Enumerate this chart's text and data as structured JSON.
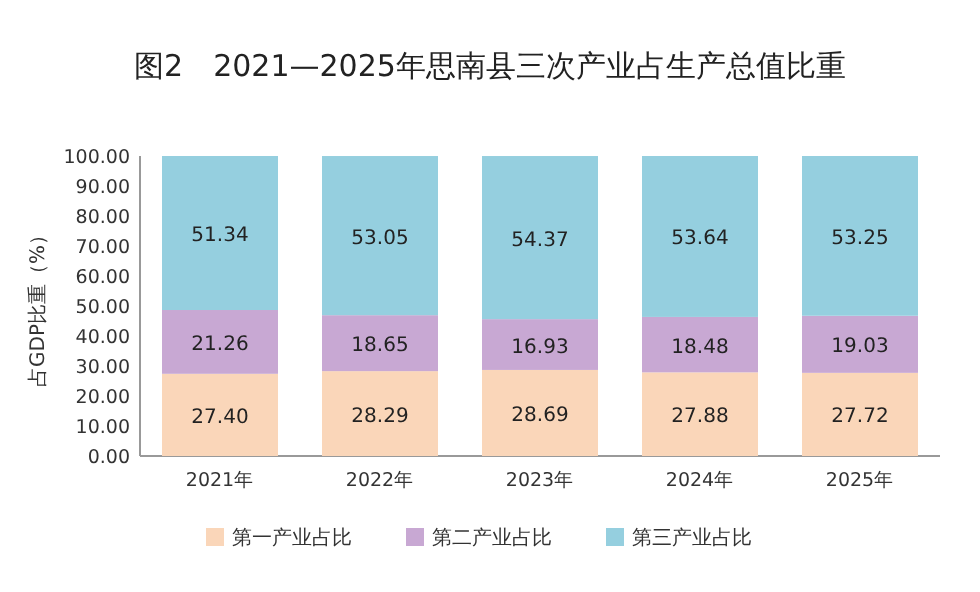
{
  "chart_data": {
    "type": "bar",
    "stacked": true,
    "title": "图2　2021—2025年思南县三次产业占生产总值比重",
    "ylabel": "占GDP比重（%）",
    "categories": [
      "2021年",
      "2022年",
      "2023年",
      "2024年",
      "2025年"
    ],
    "series": [
      {
        "name": "第一产业占比",
        "color": "#fad6b9",
        "values": [
          27.4,
          28.29,
          28.69,
          27.88,
          27.72
        ],
        "value_labels": [
          "27.40",
          "28.29",
          "28.69",
          "27.88",
          "27.72"
        ]
      },
      {
        "name": "第二产业占比",
        "color": "#c8a8d3",
        "values": [
          21.26,
          18.65,
          16.93,
          18.48,
          19.03
        ],
        "value_labels": [
          "21.26",
          "18.65",
          "16.93",
          "18.48",
          "19.03"
        ]
      },
      {
        "name": "第三产业占比",
        "color": "#95cfdf",
        "values": [
          51.34,
          53.05,
          54.37,
          53.64,
          53.25
        ],
        "value_labels": [
          "51.34",
          "53.05",
          "54.37",
          "53.64",
          "53.25"
        ]
      }
    ],
    "ylim": [
      0,
      100
    ],
    "yticks": [
      {
        "value": 0,
        "label": "0.00"
      },
      {
        "value": 10,
        "label": "10.00"
      },
      {
        "value": 20,
        "label": "20.00"
      },
      {
        "value": 30,
        "label": "30.00"
      },
      {
        "value": 40,
        "label": "40.00"
      },
      {
        "value": 50,
        "label": "50.00"
      },
      {
        "value": 60,
        "label": "60.00"
      },
      {
        "value": 70,
        "label": "70.00"
      },
      {
        "value": 80,
        "label": "80.00"
      },
      {
        "value": 90,
        "label": "90.00"
      },
      {
        "value": 100,
        "label": "100.00"
      }
    ],
    "legend": "bottom"
  }
}
